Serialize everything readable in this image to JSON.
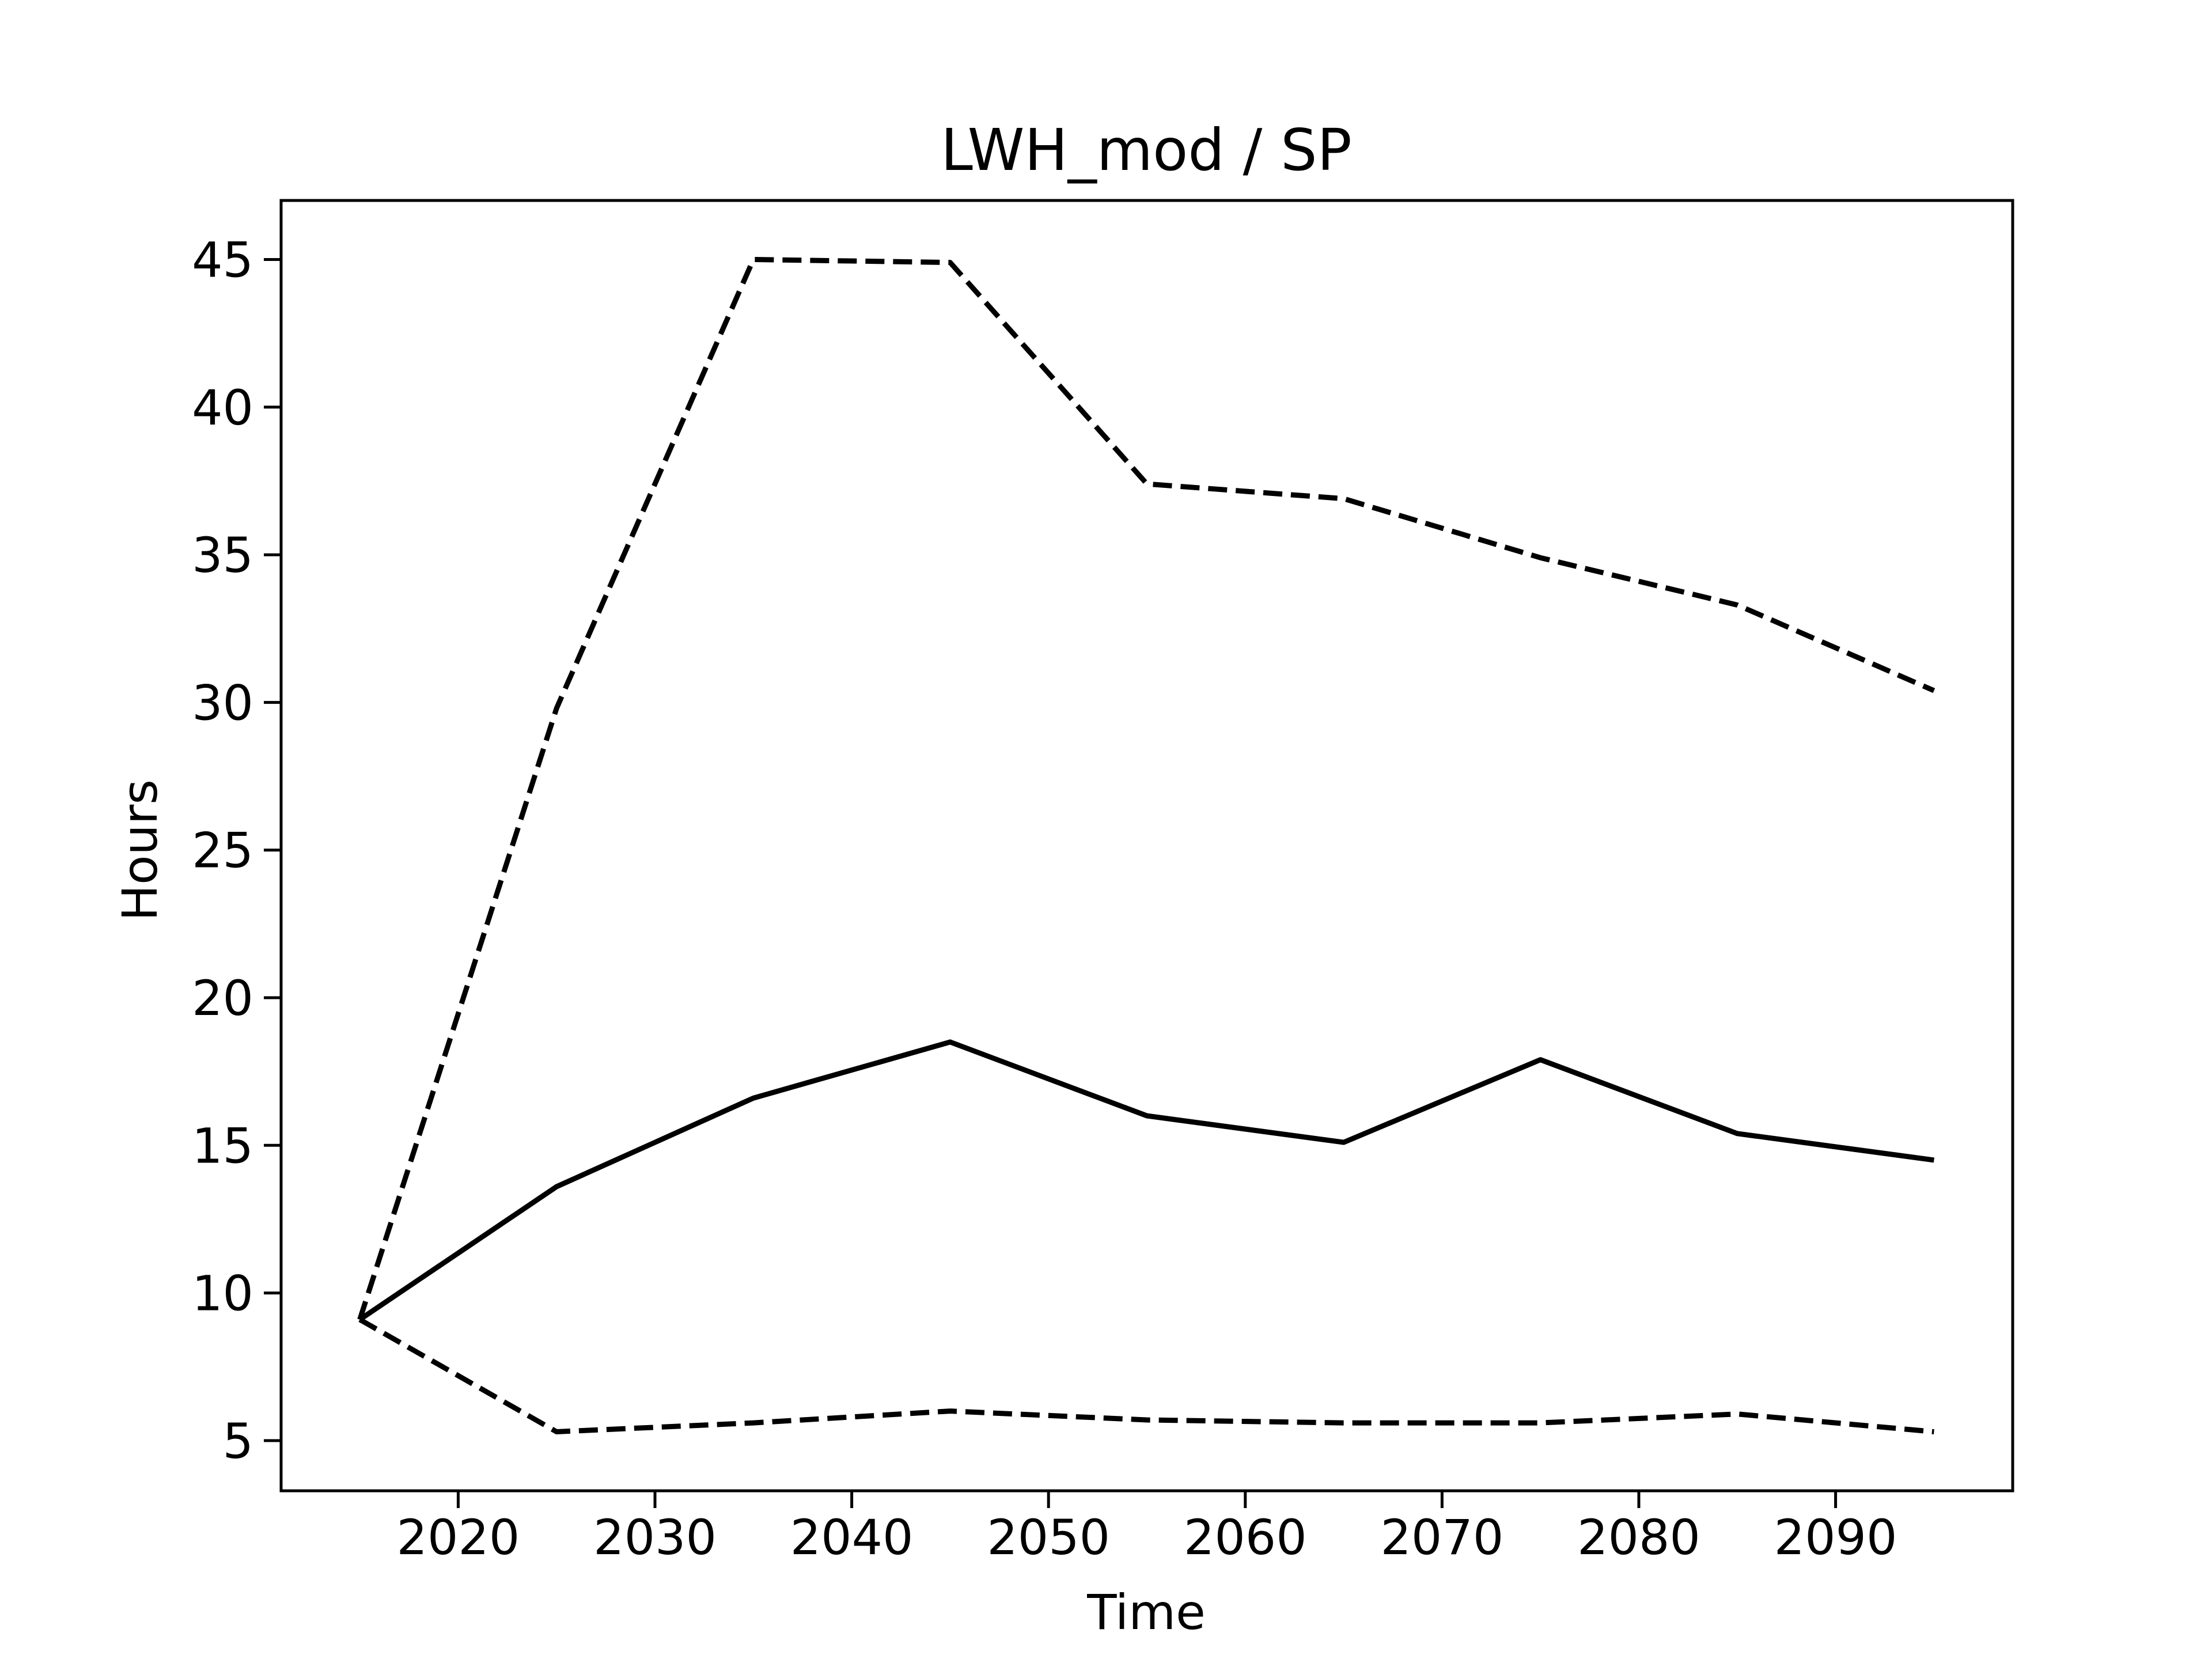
{
  "chart_data": {
    "type": "line",
    "title": "LWH_mod / SP",
    "xlabel": "Time",
    "ylabel": "Hours",
    "x": [
      2015,
      2025,
      2035,
      2045,
      2055,
      2065,
      2075,
      2085,
      2095
    ],
    "xlim": [
      2011,
      2099
    ],
    "ylim": [
      3.3,
      47.0
    ],
    "xticks": [
      2020,
      2030,
      2040,
      2050,
      2060,
      2070,
      2080,
      2090
    ],
    "yticks": [
      5,
      10,
      15,
      20,
      25,
      30,
      35,
      40,
      45
    ],
    "grid": false,
    "legend": "none",
    "series": [
      {
        "style": "solid",
        "color": "#000000",
        "values": [
          9.1,
          13.6,
          16.6,
          18.5,
          16.0,
          15.1,
          17.9,
          15.4,
          14.5
        ]
      },
      {
        "style": "dashed",
        "color": "#000000",
        "values": [
          9.1,
          29.8,
          45.0,
          44.9,
          37.4,
          36.9,
          34.9,
          33.3,
          30.4
        ]
      },
      {
        "style": "dashed",
        "color": "#000000",
        "values": [
          9.1,
          5.3,
          5.6,
          6.0,
          5.7,
          5.6,
          5.6,
          5.9,
          5.3
        ]
      }
    ]
  }
}
